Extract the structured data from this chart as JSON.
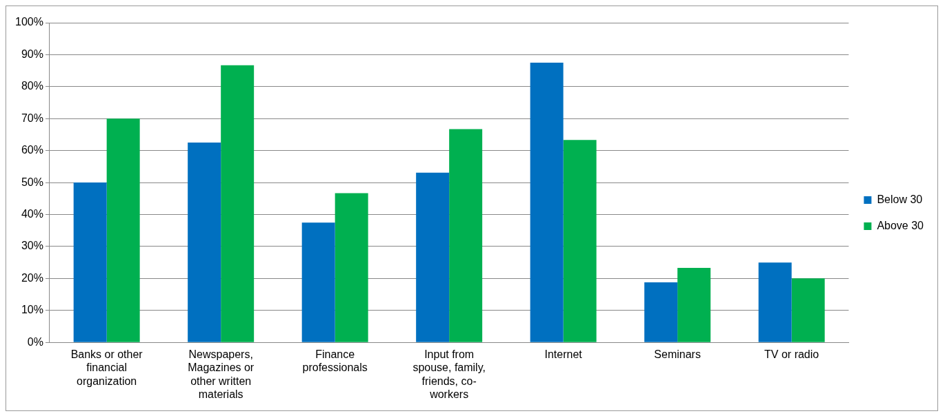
{
  "chart_data": {
    "type": "bar",
    "categories": [
      "Banks or other financial organization",
      "Newspapers, Magazines or other written materials",
      "Finance professionals",
      "Input from spouse, family, friends, co-workers",
      "Internet",
      "Seminars",
      "TV or radio"
    ],
    "series": [
      {
        "name": "Below 30",
        "color": "#0070c0",
        "values": [
          50,
          62.5,
          37.5,
          53.1,
          87.5,
          18.8,
          25
        ]
      },
      {
        "name": "Above 30",
        "color": "#00b050",
        "values": [
          70,
          86.7,
          46.7,
          66.7,
          63.3,
          23.3,
          20
        ]
      }
    ],
    "ylim": [
      0,
      100
    ],
    "yticks": [
      {
        "value": 0,
        "label": "0%"
      },
      {
        "value": 10,
        "label": "10%"
      },
      {
        "value": 20,
        "label": "20%"
      },
      {
        "value": 30,
        "label": "30%"
      },
      {
        "value": 40,
        "label": "40%"
      },
      {
        "value": 50,
        "label": "50%"
      },
      {
        "value": 60,
        "label": "60%"
      },
      {
        "value": 70,
        "label": "70%"
      },
      {
        "value": 80,
        "label": "80%"
      },
      {
        "value": 90,
        "label": "90%"
      },
      {
        "value": 100,
        "label": "100%"
      }
    ],
    "grid": "y",
    "legend": "right"
  }
}
